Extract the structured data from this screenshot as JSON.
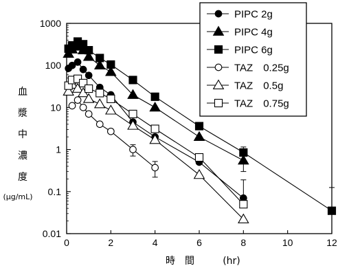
{
  "chart_data": {
    "type": "scatter",
    "xlabel": "時　間",
    "xunit": "(hr)",
    "ylabel": [
      "血",
      "漿",
      "中",
      "濃",
      "度"
    ],
    "yunit": "(μg/mL)",
    "xlim": [
      0,
      12
    ],
    "ylim": [
      0.01,
      1000
    ],
    "yscale": "log",
    "grid": false,
    "legend_position": "top-right",
    "x_ticks": [
      "0",
      "2",
      "4",
      "6",
      "8",
      "10",
      "12"
    ],
    "y_ticks": [
      "0.01",
      "0.1",
      "1",
      "10",
      "100",
      "1000"
    ],
    "series": [
      {
        "name": "PIPC 2g",
        "marker": "circle",
        "fill": "filled",
        "size": 6,
        "points": [
          [
            0.083,
            85
          ],
          [
            0.25,
            100
          ],
          [
            0.5,
            120
          ],
          [
            0.75,
            80
          ],
          [
            1,
            58
          ],
          [
            1.5,
            30
          ],
          [
            2,
            20
          ],
          [
            3,
            4.5
          ],
          [
            4,
            2
          ],
          [
            6,
            0.5
          ],
          [
            8,
            0.07
          ]
        ],
        "errors": [
          0,
          0,
          0,
          0,
          0,
          0,
          0,
          0,
          0,
          0,
          0.12
        ]
      },
      {
        "name": "PIPC 4g",
        "marker": "triangle",
        "fill": "filled",
        "size": 7,
        "points": [
          [
            0.083,
            190
          ],
          [
            0.25,
            240
          ],
          [
            0.5,
            280
          ],
          [
            0.75,
            230
          ],
          [
            1,
            160
          ],
          [
            1.5,
            100
          ],
          [
            2,
            70
          ],
          [
            3,
            20
          ],
          [
            4,
            10
          ],
          [
            6,
            2
          ],
          [
            8,
            0.55
          ]
        ],
        "errors": [
          0,
          0,
          0,
          0,
          0,
          0,
          0,
          0,
          0,
          0,
          0.25
        ]
      },
      {
        "name": "PIPC 6g",
        "marker": "square",
        "fill": "filled",
        "size": 6.5,
        "points": [
          [
            0.083,
            250
          ],
          [
            0.25,
            300
          ],
          [
            0.5,
            370
          ],
          [
            0.75,
            320
          ],
          [
            1,
            230
          ],
          [
            1.5,
            150
          ],
          [
            2,
            105
          ],
          [
            3,
            45
          ],
          [
            4,
            18
          ],
          [
            6,
            3.6
          ],
          [
            8,
            0.85
          ],
          [
            12,
            0.035
          ]
        ],
        "errors": [
          0,
          0,
          0,
          0,
          0,
          0,
          0,
          0,
          0,
          0.5,
          0.3,
          0.09
        ]
      },
      {
        "name": "TAZ　0.25g",
        "marker": "circle",
        "fill": "open",
        "size": 6,
        "points": [
          [
            0.25,
            11
          ],
          [
            0.5,
            15
          ],
          [
            0.75,
            10
          ],
          [
            1,
            7
          ],
          [
            1.5,
            4
          ],
          [
            2,
            2.7
          ],
          [
            3,
            1
          ],
          [
            4,
            0.37
          ]
        ],
        "errors": [
          0,
          0,
          0,
          0,
          0,
          0,
          0.3,
          0.15
        ]
      },
      {
        "name": "TAZ　0.5g",
        "marker": "triangle",
        "fill": "open",
        "size": 7,
        "points": [
          [
            0.083,
            24
          ],
          [
            0.25,
            35
          ],
          [
            0.5,
            28
          ],
          [
            0.75,
            22
          ],
          [
            1,
            16
          ],
          [
            1.5,
            12
          ],
          [
            2,
            8.5
          ],
          [
            3,
            3.7
          ],
          [
            4,
            1.7
          ],
          [
            6,
            0.25
          ],
          [
            8,
            0.022
          ]
        ],
        "errors": [
          0,
          0,
          0,
          0,
          0,
          0,
          0,
          0,
          0,
          0,
          0
        ]
      },
      {
        "name": "TAZ　0.75g",
        "marker": "square",
        "fill": "open",
        "size": 6.5,
        "points": [
          [
            0.083,
            33
          ],
          [
            0.25,
            45
          ],
          [
            0.5,
            48
          ],
          [
            0.75,
            38
          ],
          [
            1,
            28
          ],
          [
            1.5,
            22
          ],
          [
            2,
            16
          ],
          [
            3,
            7
          ],
          [
            4,
            3.1
          ],
          [
            6,
            0.65
          ],
          [
            8,
            0.05
          ]
        ],
        "errors": [
          0,
          0,
          0,
          0,
          0,
          0,
          0,
          0,
          0,
          0,
          0
        ]
      }
    ]
  }
}
